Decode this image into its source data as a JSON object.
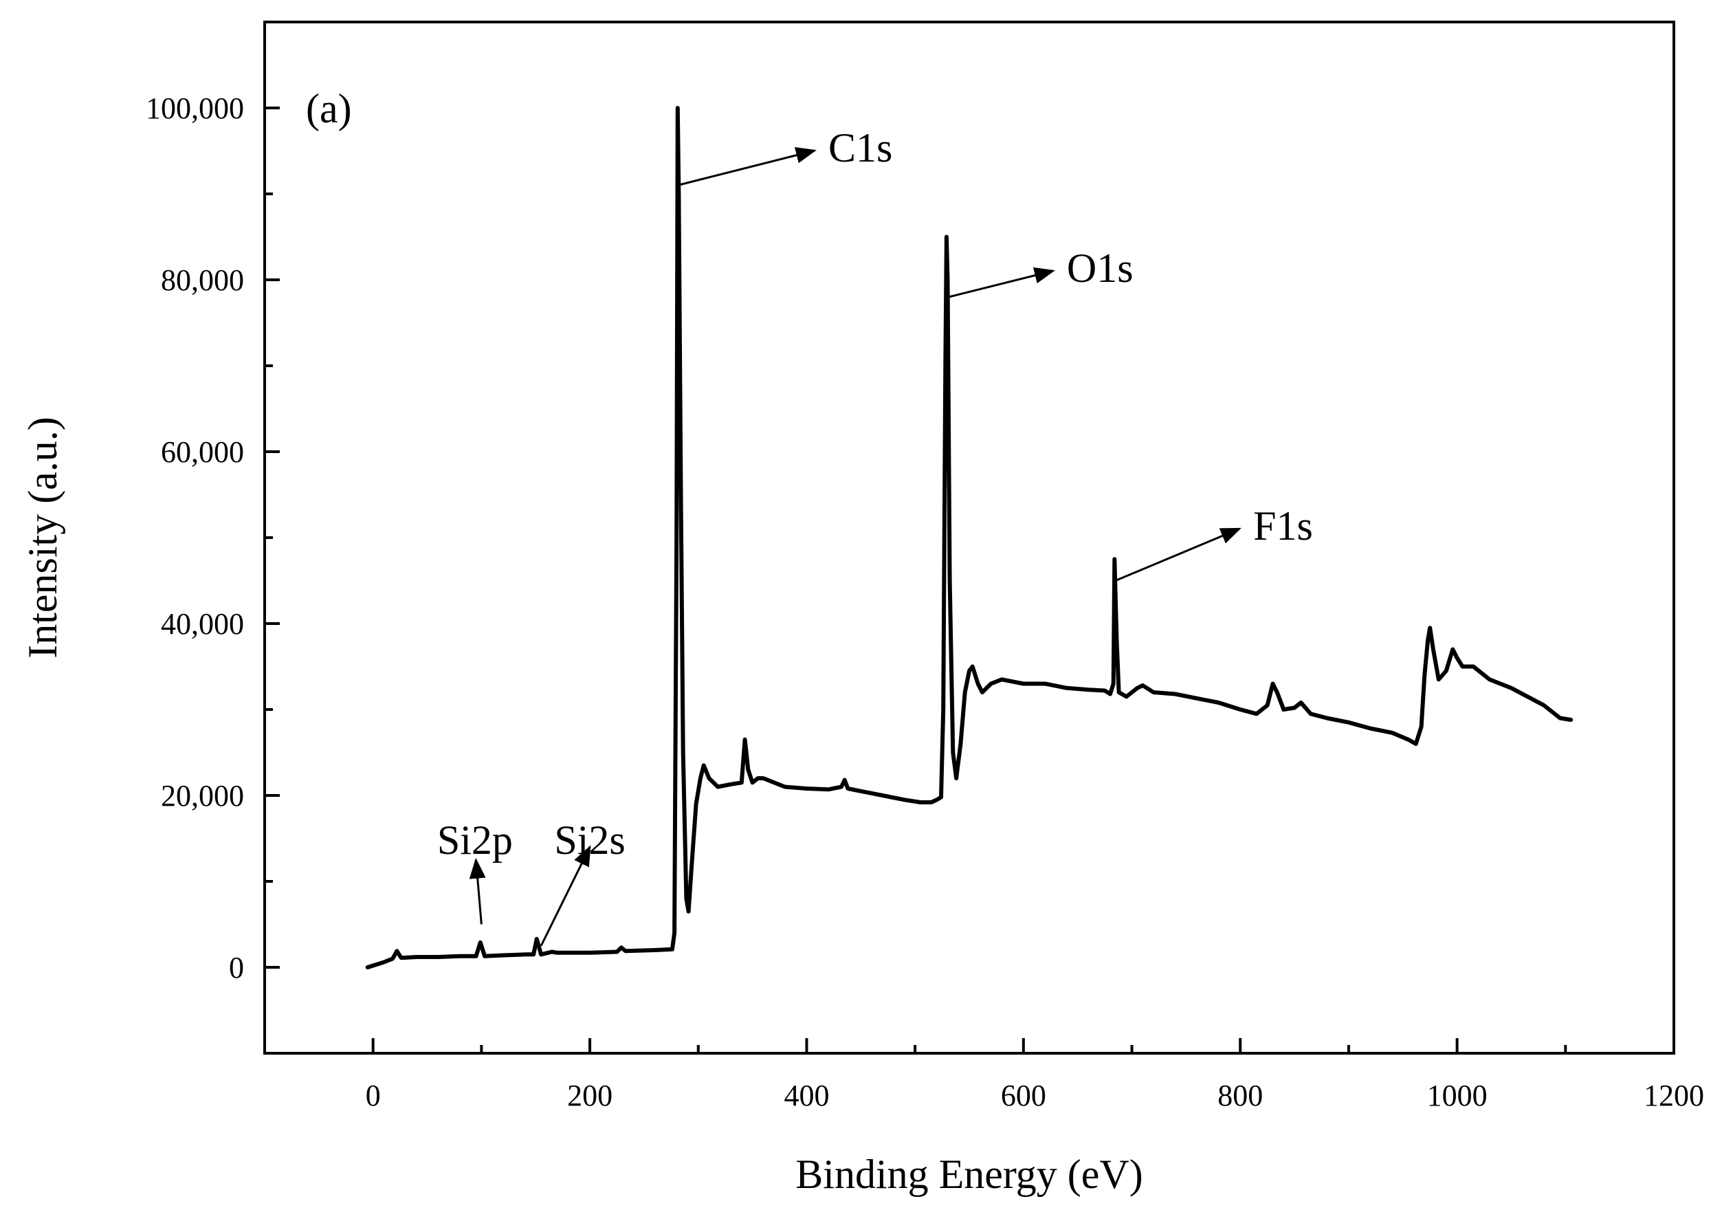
{
  "chart_data": {
    "type": "line",
    "title": "",
    "panel_label": "(a)",
    "xlabel": "Binding Energy (eV)",
    "ylabel": "Intensity (a.u.)",
    "xlim": [
      -100,
      1200
    ],
    "ylim": [
      -10000,
      110000
    ],
    "grid": false,
    "legend": "none",
    "x_ticks": [
      {
        "value": 0,
        "label": "0"
      },
      {
        "value": 200,
        "label": "200"
      },
      {
        "value": 400,
        "label": "400"
      },
      {
        "value": 600,
        "label": "600"
      },
      {
        "value": 800,
        "label": "800"
      },
      {
        "value": 1000,
        "label": "1000"
      },
      {
        "value": 1200,
        "label": "1200"
      }
    ],
    "y_ticks": [
      {
        "value": 0,
        "label": "0"
      },
      {
        "value": 20000,
        "label": "20,000"
      },
      {
        "value": 40000,
        "label": "40,000"
      },
      {
        "value": 60000,
        "label": "60,000"
      },
      {
        "value": 80000,
        "label": "80,000"
      },
      {
        "value": 100000,
        "label": "100,000"
      }
    ],
    "series": [
      {
        "name": "XPS survey spectrum",
        "color": "#000000",
        "points": [
          [
            -5,
            0
          ],
          [
            10,
            600
          ],
          [
            18,
            1000
          ],
          [
            22,
            1900
          ],
          [
            26,
            1100
          ],
          [
            40,
            1200
          ],
          [
            60,
            1200
          ],
          [
            80,
            1300
          ],
          [
            95,
            1300
          ],
          [
            99,
            2900
          ],
          [
            103,
            1300
          ],
          [
            120,
            1400
          ],
          [
            140,
            1500
          ],
          [
            148,
            1500
          ],
          [
            151,
            3300
          ],
          [
            155,
            1500
          ],
          [
            165,
            1800
          ],
          [
            170,
            1700
          ],
          [
            200,
            1700
          ],
          [
            225,
            1800
          ],
          [
            229,
            2300
          ],
          [
            233,
            1900
          ],
          [
            260,
            2000
          ],
          [
            276,
            2100
          ],
          [
            278,
            4000
          ],
          [
            280,
            50000
          ],
          [
            281,
            100000
          ],
          [
            282,
            90000
          ],
          [
            284,
            55000
          ],
          [
            286,
            25000
          ],
          [
            289,
            8000
          ],
          [
            291,
            6500
          ],
          [
            294,
            12000
          ],
          [
            298,
            19000
          ],
          [
            302,
            22000
          ],
          [
            305,
            23500
          ],
          [
            310,
            22000
          ],
          [
            318,
            21000
          ],
          [
            330,
            21300
          ],
          [
            340,
            21500
          ],
          [
            343,
            26500
          ],
          [
            346,
            23000
          ],
          [
            350,
            21500
          ],
          [
            355,
            22000
          ],
          [
            360,
            22000
          ],
          [
            370,
            21500
          ],
          [
            380,
            21000
          ],
          [
            400,
            20800
          ],
          [
            420,
            20700
          ],
          [
            432,
            21000
          ],
          [
            435,
            21800
          ],
          [
            438,
            20800
          ],
          [
            450,
            20500
          ],
          [
            470,
            20000
          ],
          [
            490,
            19500
          ],
          [
            505,
            19200
          ],
          [
            515,
            19200
          ],
          [
            520,
            19500
          ],
          [
            524,
            19800
          ],
          [
            526,
            30000
          ],
          [
            528,
            70000
          ],
          [
            529,
            85000
          ],
          [
            530,
            80000
          ],
          [
            532,
            45000
          ],
          [
            535,
            25000
          ],
          [
            538,
            22000
          ],
          [
            542,
            26000
          ],
          [
            546,
            32000
          ],
          [
            550,
            34500
          ],
          [
            553,
            35000
          ],
          [
            558,
            33000
          ],
          [
            562,
            32000
          ],
          [
            570,
            33000
          ],
          [
            580,
            33500
          ],
          [
            600,
            33000
          ],
          [
            620,
            33000
          ],
          [
            640,
            32500
          ],
          [
            660,
            32300
          ],
          [
            675,
            32200
          ],
          [
            680,
            31800
          ],
          [
            683,
            33000
          ],
          [
            684,
            47500
          ],
          [
            686,
            38000
          ],
          [
            688,
            32000
          ],
          [
            695,
            31500
          ],
          [
            705,
            32500
          ],
          [
            710,
            32800
          ],
          [
            720,
            32000
          ],
          [
            740,
            31800
          ],
          [
            760,
            31300
          ],
          [
            780,
            30800
          ],
          [
            800,
            30000
          ],
          [
            815,
            29500
          ],
          [
            825,
            30500
          ],
          [
            830,
            33000
          ],
          [
            834,
            32000
          ],
          [
            840,
            30000
          ],
          [
            850,
            30200
          ],
          [
            856,
            30800
          ],
          [
            865,
            29500
          ],
          [
            880,
            29000
          ],
          [
            900,
            28500
          ],
          [
            920,
            27800
          ],
          [
            940,
            27300
          ],
          [
            955,
            26500
          ],
          [
            962,
            26000
          ],
          [
            967,
            28000
          ],
          [
            970,
            34000
          ],
          [
            973,
            38000
          ],
          [
            975,
            39500
          ],
          [
            978,
            37000
          ],
          [
            983,
            33500
          ],
          [
            990,
            34500
          ],
          [
            996,
            37000
          ],
          [
            1000,
            36000
          ],
          [
            1005,
            35000
          ],
          [
            1015,
            35000
          ],
          [
            1030,
            33500
          ],
          [
            1050,
            32500
          ],
          [
            1065,
            31500
          ],
          [
            1080,
            30500
          ],
          [
            1095,
            29000
          ],
          [
            1105,
            28800
          ]
        ]
      }
    ],
    "annotations": [
      {
        "text": "C1s",
        "peak_x": 281,
        "peak_y": 91000,
        "label_x": 420,
        "label_y": 96000
      },
      {
        "text": "O1s",
        "peak_x": 531,
        "peak_y": 78000,
        "label_x": 640,
        "label_y": 82000
      },
      {
        "text": "F1s",
        "peak_x": 685,
        "peak_y": 45000,
        "label_x": 812,
        "label_y": 52000
      },
      {
        "text": "Si2p",
        "peak_x": 100,
        "peak_y": 5000,
        "label_x": 94,
        "label_y": 14000
      },
      {
        "text": "Si2s",
        "peak_x": 155,
        "peak_y": 2500,
        "label_x": 200,
        "label_y": 14000
      }
    ]
  }
}
